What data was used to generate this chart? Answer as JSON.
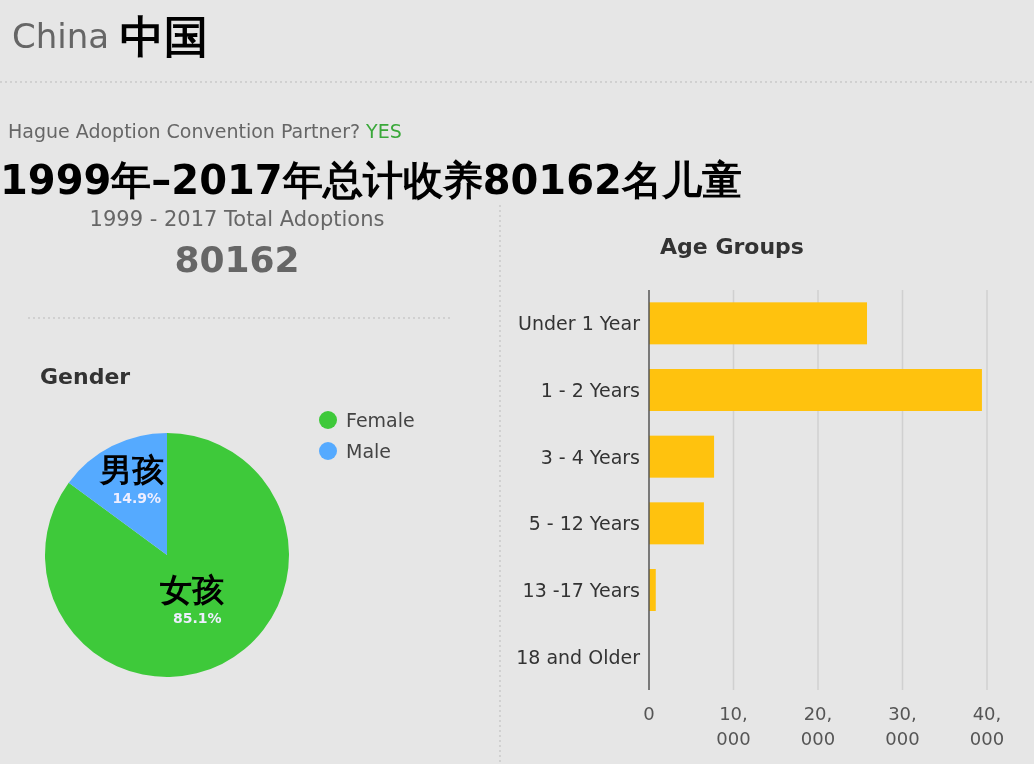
{
  "chart_data": [
    {
      "type": "other",
      "title": "1999年–2017年总计收养80162名儿童",
      "annotations": [
        "China",
        "中国",
        "Hague Adoption Convention Partner?",
        "YES",
        "1999 - 2017 Total Adoptions",
        "80162"
      ]
    },
    {
      "type": "pie",
      "title": "Gender",
      "categories": [
        "Female",
        "Male"
      ],
      "values": [
        85.1,
        14.9
      ],
      "colors": [
        "#3ec93a",
        "#55aaff"
      ],
      "value_labels": [
        "85.1%",
        "14.9%"
      ],
      "annotations": [
        "女孩",
        "男孩"
      ],
      "legend": "top right"
    },
    {
      "type": "bar",
      "title": "Age Groups",
      "orientation": "horizontal",
      "categories": [
        "Under 1 Year",
        "1 - 2 Years",
        "3 - 4 Years",
        "5 - 12 Years",
        "13 -17 Years",
        "18 and Older"
      ],
      "values": [
        25800,
        39400,
        7700,
        6500,
        800,
        0
      ],
      "color": "#ffc20e",
      "xlim": [
        0,
        40000
      ],
      "xticks": [
        0,
        {
          "value": 10000,
          "label": "10,000"
        },
        {
          "value": 20000,
          "label": "20,000"
        },
        {
          "value": 30000,
          "label": "30,000"
        },
        {
          "value": 40000,
          "label": "40,000"
        }
      ],
      "grid": "x"
    }
  ]
}
